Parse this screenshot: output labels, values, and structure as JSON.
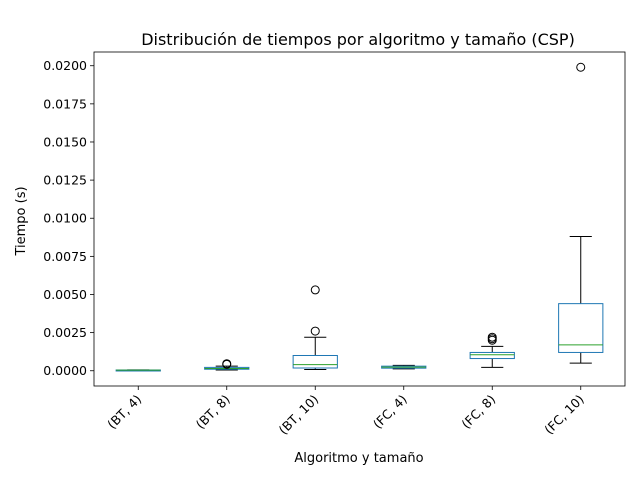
{
  "chart_data": {
    "type": "box",
    "title": "Distribución de tiempos por algoritmo y tamaño (CSP)",
    "xlabel": "Algoritmo y tamaño",
    "ylabel": "Tiempo (s)",
    "ylim": [
      -0.001,
      0.0209
    ],
    "yticks": [
      "0.0000",
      "0.0025",
      "0.0050",
      "0.0075",
      "0.0100",
      "0.0125",
      "0.0150",
      "0.0175",
      "0.0200"
    ],
    "categories": [
      "(BT, 4)",
      "(BT, 8)",
      "(BT, 10)",
      "(FC, 4)",
      "(FC, 8)",
      "(FC, 10)"
    ],
    "boxes": [
      {
        "whisker_low": 2e-05,
        "q1": 3e-05,
        "median": 4e-05,
        "q3": 5e-05,
        "whisker_high": 6e-05,
        "outliers": []
      },
      {
        "whisker_low": 5e-05,
        "q1": 0.0001,
        "median": 0.00015,
        "q3": 0.00022,
        "whisker_high": 0.0003,
        "outliers": [
          0.00042,
          0.00046
        ]
      },
      {
        "whisker_low": 8e-05,
        "q1": 0.00018,
        "median": 0.0004,
        "q3": 0.001,
        "whisker_high": 0.0022,
        "outliers": [
          0.0026,
          0.0053
        ]
      },
      {
        "whisker_low": 0.00012,
        "q1": 0.00017,
        "median": 0.00024,
        "q3": 0.0003,
        "whisker_high": 0.00035,
        "outliers": []
      },
      {
        "whisker_low": 0.00022,
        "q1": 0.0008,
        "median": 0.00105,
        "q3": 0.0012,
        "whisker_high": 0.0016,
        "outliers": [
          0.002,
          0.0021,
          0.0022
        ]
      },
      {
        "whisker_low": 0.0005,
        "q1": 0.0012,
        "median": 0.0017,
        "q3": 0.0044,
        "whisker_high": 0.0088,
        "outliers": [
          0.0199
        ]
      }
    ],
    "colors": {
      "box": "#1f77b4",
      "median": "#2ca02c",
      "whisker": "#000000",
      "outlier": "#000000"
    },
    "grid": false,
    "legend": "none"
  }
}
